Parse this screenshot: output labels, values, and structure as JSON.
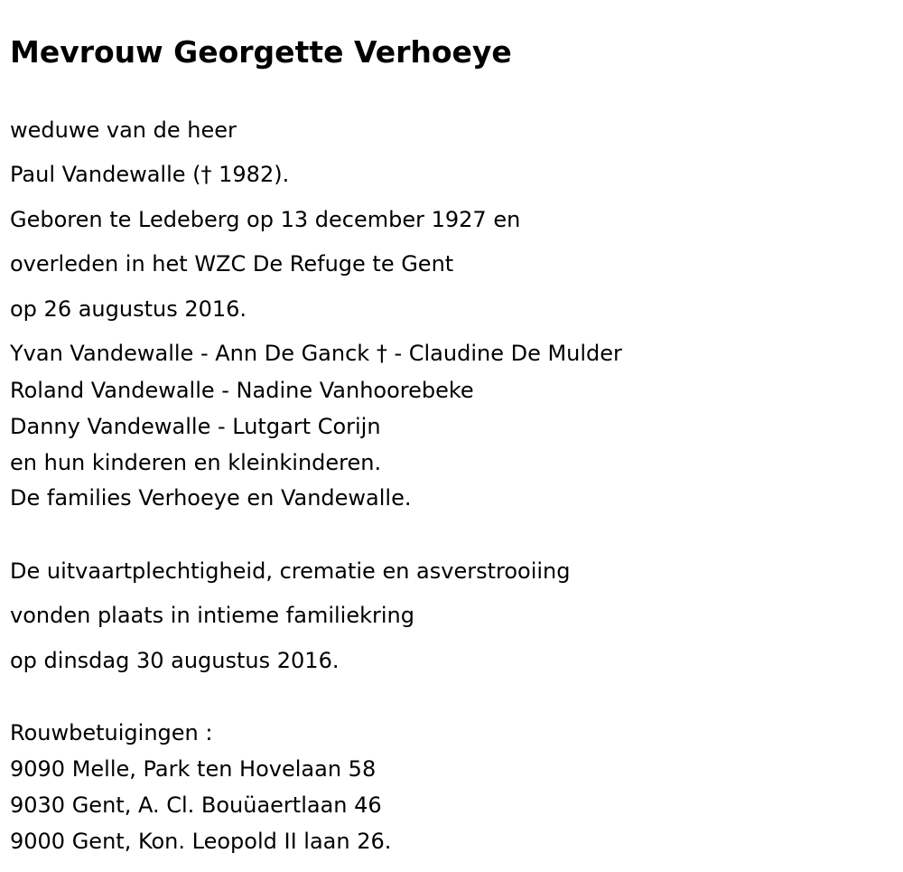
{
  "title": "Mevrouw Georgette Verhoeye",
  "intro": [
    "weduwe van de heer",
    "Paul Vandewalle († 1982).",
    "Geboren te Ledeberg op 13 december 1927 en",
    "overleden in het WZC De Refuge te Gent",
    "op 26 augustus 2016."
  ],
  "family": [
    "Yvan Vandewalle - Ann De Ganck † - Claudine De Mulder",
    "Roland Vandewalle - Nadine Vanhoorebeke",
    "Danny Vandewalle - Lutgart Corijn",
    "en hun kinderen en kleinkinderen.",
    "De families Verhoeye en Vandewalle."
  ],
  "ceremony": [
    "De uitvaartplechtigheid, crematie en asverstrooiing",
    "vonden plaats in intieme familiekring",
    "op dinsdag 30 augustus 2016."
  ],
  "condolences": {
    "label": "Rouwbetuigingen :",
    "addresses": [
      "9090 Melle, Park ten Hovelaan 58",
      "9030 Gent, A. Cl. Bouüaertlaan 46",
      "9000 Gent, Kon. Leopold II laan 26."
    ]
  }
}
